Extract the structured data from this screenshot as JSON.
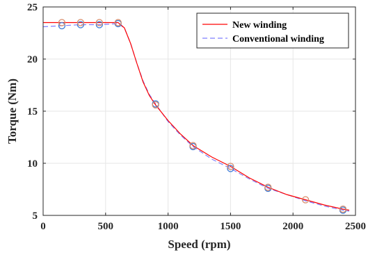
{
  "chart_data": {
    "type": "line",
    "title": "",
    "xlabel": "Speed (rpm)",
    "ylabel": "Torque (Nm)",
    "xlim": [
      0,
      2500
    ],
    "ylim": [
      5,
      25
    ],
    "xticks": [
      0,
      500,
      1000,
      1500,
      2000,
      2500
    ],
    "yticks": [
      5,
      10,
      15,
      20,
      25
    ],
    "grid": true,
    "legend_position": "top-right",
    "series": [
      {
        "name": "New winding",
        "style": "solid",
        "color": "#ff0000",
        "x": [
          0,
          150,
          300,
          450,
          600,
          650,
          700,
          750,
          800,
          850,
          900,
          1000,
          1100,
          1200,
          1350,
          1500,
          1650,
          1800,
          1950,
          2100,
          2250,
          2400,
          2450
        ],
        "y": [
          23.5,
          23.5,
          23.5,
          23.5,
          23.5,
          23.0,
          21.5,
          19.6,
          17.8,
          16.5,
          15.6,
          14.1,
          12.8,
          11.7,
          10.6,
          9.7,
          8.6,
          7.7,
          7.0,
          6.5,
          6.0,
          5.6,
          5.5
        ],
        "markers": {
          "color": "#d98c6a",
          "x": [
            150,
            300,
            450,
            600,
            900,
            1200,
            1500,
            1800,
            2100,
            2400
          ],
          "y": [
            23.5,
            23.5,
            23.5,
            23.5,
            15.6,
            11.7,
            9.7,
            7.7,
            6.5,
            5.6
          ]
        }
      },
      {
        "name": "Conventional winding",
        "style": "dashed",
        "color": "#7f7fff",
        "x": [
          0,
          150,
          300,
          450,
          600,
          650,
          700,
          750,
          800,
          850,
          900,
          1000,
          1100,
          1200,
          1350,
          1500,
          1650,
          1800,
          1950,
          2100,
          2250,
          2400,
          2450
        ],
        "y": [
          23.1,
          23.2,
          23.3,
          23.3,
          23.4,
          23.0,
          21.5,
          19.6,
          17.9,
          16.6,
          15.7,
          14.0,
          12.7,
          11.6,
          10.4,
          9.5,
          8.5,
          7.6,
          7.0,
          6.4,
          5.9,
          5.5,
          5.4
        ],
        "markers": {
          "color": "#3a7ad6",
          "x": [
            150,
            300,
            450,
            600,
            900,
            1200,
            1500,
            1800,
            2400
          ],
          "y": [
            23.2,
            23.3,
            23.3,
            23.4,
            15.7,
            11.6,
            9.5,
            7.6,
            5.5
          ]
        }
      }
    ]
  }
}
